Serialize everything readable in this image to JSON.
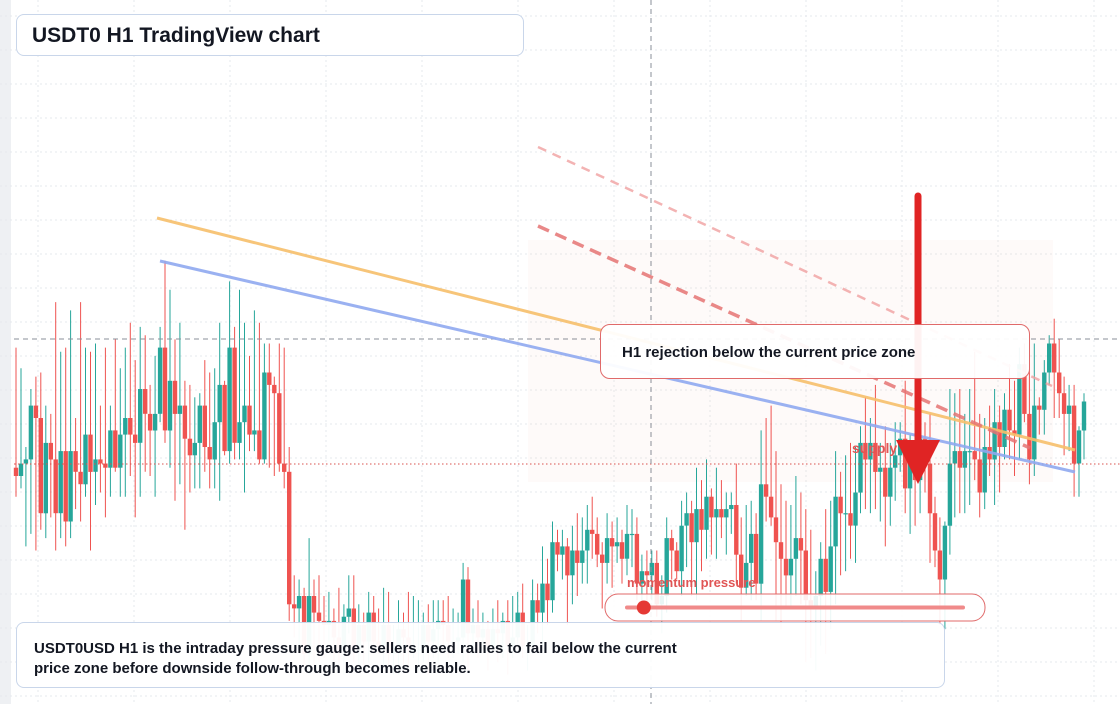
{
  "header": {
    "title": "USDT0 H1 TradingView chart"
  },
  "annotations": {
    "callout": "H1 rejection below the current price zone",
    "zone_label": "supply",
    "gauge_label": "momentum pressure",
    "note": "USDT0USD H1 is the intraday pressure gauge: sellers need rallies to fail below the current price zone before downside follow-through becomes reliable."
  },
  "gauge": {
    "pressure": 0.05
  },
  "colors": {
    "bull": "#26a69a",
    "bear": "#ef5350",
    "accent": "#e53935",
    "trend_orange": "#f6bf6a",
    "trend_blue": "#8fa9ef",
    "grid": "#e6e9ee"
  },
  "chart_data": {
    "type": "candlestick",
    "symbol": "USDT0USD",
    "timeframe": "H1",
    "title": "USDT0 H1 TradingView chart",
    "grid": true,
    "current_price_level": 0.6,
    "candles": [
      [
        0.45,
        0.43,
        0.74,
        0.38
      ],
      [
        0.43,
        0.46,
        0.69,
        0.4
      ],
      [
        0.46,
        0.47,
        0.5,
        0.26
      ],
      [
        0.47,
        0.6,
        0.64,
        0.29
      ],
      [
        0.6,
        0.57,
        0.67,
        0.25
      ],
      [
        0.57,
        0.34,
        0.68,
        0.3
      ],
      [
        0.34,
        0.51,
        0.6,
        0.28
      ],
      [
        0.51,
        0.47,
        0.58,
        0.33
      ],
      [
        0.47,
        0.34,
        0.85,
        0.25
      ],
      [
        0.34,
        0.49,
        0.73,
        0.28
      ],
      [
        0.49,
        0.32,
        0.74,
        0.26
      ],
      [
        0.32,
        0.49,
        0.83,
        0.28
      ],
      [
        0.49,
        0.44,
        0.57,
        0.35
      ],
      [
        0.44,
        0.41,
        0.85,
        0.32
      ],
      [
        0.41,
        0.53,
        0.74,
        0.38
      ],
      [
        0.53,
        0.44,
        0.73,
        0.25
      ],
      [
        0.44,
        0.47,
        0.75,
        0.36
      ],
      [
        0.47,
        0.46,
        0.6,
        0.39
      ],
      [
        0.46,
        0.45,
        0.74,
        0.33
      ],
      [
        0.45,
        0.54,
        0.6,
        0.38
      ],
      [
        0.54,
        0.45,
        0.76,
        0.44
      ],
      [
        0.45,
        0.53,
        0.69,
        0.38
      ],
      [
        0.53,
        0.57,
        0.74,
        0.38
      ],
      [
        0.57,
        0.53,
        0.8,
        0.43
      ],
      [
        0.53,
        0.51,
        0.71,
        0.33
      ],
      [
        0.51,
        0.64,
        0.79,
        0.38
      ],
      [
        0.64,
        0.58,
        0.77,
        0.44
      ],
      [
        0.58,
        0.54,
        0.65,
        0.43
      ],
      [
        0.54,
        0.58,
        0.72,
        0.38
      ],
      [
        0.58,
        0.74,
        0.79,
        0.56
      ],
      [
        0.74,
        0.54,
        0.95,
        0.51
      ],
      [
        0.54,
        0.66,
        0.88,
        0.45
      ],
      [
        0.66,
        0.58,
        0.76,
        0.37
      ],
      [
        0.58,
        0.6,
        0.8,
        0.41
      ],
      [
        0.6,
        0.52,
        0.66,
        0.3
      ],
      [
        0.52,
        0.48,
        0.65,
        0.39
      ],
      [
        0.48,
        0.51,
        0.62,
        0.4
      ],
      [
        0.51,
        0.6,
        0.63,
        0.4
      ],
      [
        0.6,
        0.5,
        0.71,
        0.44
      ],
      [
        0.5,
        0.47,
        0.68,
        0.4
      ],
      [
        0.47,
        0.56,
        0.69,
        0.4
      ],
      [
        0.56,
        0.65,
        0.8,
        0.37
      ],
      [
        0.65,
        0.49,
        0.66,
        0.48
      ],
      [
        0.49,
        0.74,
        0.9,
        0.46
      ],
      [
        0.74,
        0.51,
        0.79,
        0.47
      ],
      [
        0.51,
        0.56,
        0.88,
        0.47
      ],
      [
        0.56,
        0.6,
        0.8,
        0.39
      ],
      [
        0.6,
        0.53,
        0.72,
        0.49
      ],
      [
        0.53,
        0.54,
        0.83,
        0.49
      ],
      [
        0.54,
        0.47,
        0.8,
        0.46
      ],
      [
        0.47,
        0.68,
        0.75,
        0.46
      ],
      [
        0.68,
        0.65,
        0.75,
        0.45
      ],
      [
        0.65,
        0.63,
        0.67,
        0.43
      ],
      [
        0.63,
        0.46,
        0.75,
        0.44
      ],
      [
        0.46,
        0.44,
        0.74,
        0.4
      ],
      [
        0.44,
        0.12,
        0.5,
        0.08
      ],
      [
        0.12,
        0.11,
        0.19,
        0.04
      ],
      [
        0.11,
        0.14,
        0.18,
        0.01
      ],
      [
        0.14,
        0.0,
        0.16,
        -0.03
      ],
      [
        0.0,
        0.14,
        0.28,
        -0.05
      ],
      [
        0.14,
        0.1,
        0.18,
        -0.04
      ],
      [
        0.1,
        0.08,
        0.19,
        -0.02
      ],
      [
        0.08,
        0.07,
        0.14,
        -0.01
      ],
      [
        0.07,
        0.08,
        0.15,
        0.03
      ],
      [
        0.08,
        0.04,
        0.11,
        -0.03
      ],
      [
        0.04,
        0.01,
        0.16,
        -0.02
      ],
      [
        0.01,
        0.09,
        0.12,
        -0.05
      ],
      [
        0.09,
        0.11,
        0.19,
        0.05
      ],
      [
        0.11,
        0.01,
        0.19,
        -0.02
      ],
      [
        0.01,
        0.07,
        0.12,
        -0.04
      ],
      [
        0.07,
        0.03,
        0.1,
        -0.03
      ],
      [
        0.03,
        0.1,
        0.15,
        -0.02
      ],
      [
        0.1,
        0.03,
        0.14,
        0.0
      ],
      [
        0.03,
        0.02,
        0.11,
        0.0
      ],
      [
        0.02,
        0.07,
        0.16,
        -0.03
      ],
      [
        0.07,
        0.0,
        0.15,
        -0.03
      ],
      [
        0.0,
        0.02,
        0.07,
        -0.05
      ],
      [
        0.02,
        0.06,
        0.13,
        -0.05
      ],
      [
        0.06,
        0.04,
        0.1,
        -0.04
      ],
      [
        0.04,
        0.01,
        0.15,
        -0.03
      ],
      [
        0.01,
        0.01,
        0.14,
        -0.01
      ],
      [
        0.01,
        0.01,
        0.13,
        -0.04
      ],
      [
        0.01,
        0.07,
        0.1,
        -0.02
      ],
      [
        0.07,
        0.03,
        0.12,
        -0.05
      ],
      [
        0.03,
        0.06,
        0.13,
        -0.01
      ],
      [
        0.06,
        0.08,
        0.13,
        -0.02
      ],
      [
        0.08,
        0.07,
        0.13,
        0.02
      ],
      [
        0.07,
        0.03,
        0.14,
        -0.01
      ],
      [
        0.03,
        0.03,
        0.11,
        -0.01
      ],
      [
        0.03,
        0.04,
        0.1,
        0.0
      ],
      [
        0.04,
        0.18,
        0.22,
        -0.02
      ],
      [
        0.18,
        0.05,
        0.21,
        -0.04
      ],
      [
        0.05,
        0.07,
        0.11,
        0.0
      ],
      [
        0.07,
        0.04,
        0.13,
        -0.01
      ],
      [
        0.04,
        0.06,
        0.1,
        0.02
      ],
      [
        0.06,
        0.02,
        0.08,
        -0.04
      ],
      [
        0.02,
        0.06,
        0.11,
        0.02
      ],
      [
        0.06,
        0.05,
        0.13,
        -0.02
      ],
      [
        0.05,
        0.08,
        0.1,
        -0.01
      ],
      [
        0.08,
        0.02,
        0.13,
        -0.05
      ],
      [
        0.02,
        0.04,
        0.14,
        -0.01
      ],
      [
        0.04,
        0.1,
        0.15,
        0.02
      ],
      [
        0.1,
        0.02,
        0.17,
        -0.01
      ],
      [
        0.02,
        0.02,
        0.07,
        -0.04
      ],
      [
        0.02,
        0.13,
        0.18,
        0.0
      ],
      [
        0.13,
        0.1,
        0.17,
        0.05
      ],
      [
        0.1,
        0.17,
        0.26,
        0.02
      ],
      [
        0.17,
        0.13,
        0.23,
        0.07
      ],
      [
        0.13,
        0.27,
        0.32,
        0.1
      ],
      [
        0.27,
        0.24,
        0.3,
        0.2
      ],
      [
        0.24,
        0.26,
        0.3,
        0.18
      ],
      [
        0.26,
        0.19,
        0.28,
        0.07
      ],
      [
        0.19,
        0.25,
        0.31,
        0.12
      ],
      [
        0.25,
        0.22,
        0.34,
        0.14
      ],
      [
        0.22,
        0.25,
        0.33,
        0.17
      ],
      [
        0.25,
        0.3,
        0.36,
        0.17
      ],
      [
        0.3,
        0.29,
        0.38,
        0.23
      ],
      [
        0.29,
        0.24,
        0.33,
        0.21
      ],
      [
        0.24,
        0.22,
        0.27,
        0.11
      ],
      [
        0.22,
        0.28,
        0.34,
        0.17
      ],
      [
        0.28,
        0.26,
        0.32,
        0.16
      ],
      [
        0.26,
        0.27,
        0.33,
        0.22
      ],
      [
        0.27,
        0.23,
        0.3,
        0.17
      ],
      [
        0.23,
        0.29,
        0.36,
        0.19
      ],
      [
        0.29,
        0.29,
        0.35,
        0.21
      ],
      [
        0.29,
        0.17,
        0.33,
        0.13
      ],
      [
        0.17,
        0.2,
        0.24,
        0.1
      ],
      [
        0.2,
        0.19,
        0.25,
        0.1
      ],
      [
        0.19,
        0.22,
        0.25,
        0.13
      ],
      [
        0.22,
        0.12,
        0.25,
        0.09
      ],
      [
        0.12,
        0.14,
        0.19,
        0.05
      ],
      [
        0.14,
        0.28,
        0.33,
        0.1
      ],
      [
        0.28,
        0.25,
        0.3,
        0.18
      ],
      [
        0.25,
        0.2,
        0.27,
        0.18
      ],
      [
        0.2,
        0.31,
        0.37,
        0.14
      ],
      [
        0.31,
        0.34,
        0.39,
        0.21
      ],
      [
        0.34,
        0.27,
        0.37,
        0.14
      ],
      [
        0.27,
        0.35,
        0.45,
        0.13
      ],
      [
        0.35,
        0.3,
        0.42,
        0.2
      ],
      [
        0.3,
        0.38,
        0.47,
        0.23
      ],
      [
        0.38,
        0.33,
        0.4,
        0.24
      ],
      [
        0.33,
        0.35,
        0.45,
        0.23
      ],
      [
        0.35,
        0.33,
        0.42,
        0.28
      ],
      [
        0.33,
        0.35,
        0.39,
        0.24
      ],
      [
        0.35,
        0.36,
        0.39,
        0.29
      ],
      [
        0.36,
        0.24,
        0.46,
        0.17
      ],
      [
        0.24,
        0.16,
        0.33,
        0.08
      ],
      [
        0.16,
        0.22,
        0.36,
        0.14
      ],
      [
        0.22,
        0.29,
        0.37,
        0.13
      ],
      [
        0.29,
        0.17,
        0.34,
        0.13
      ],
      [
        0.17,
        0.41,
        0.54,
        0.08
      ],
      [
        0.41,
        0.38,
        0.57,
        0.32
      ],
      [
        0.38,
        0.33,
        0.6,
        0.31
      ],
      [
        0.33,
        0.27,
        0.49,
        0.08
      ],
      [
        0.27,
        0.23,
        0.41,
        0.06
      ],
      [
        0.23,
        0.19,
        0.37,
        0.11
      ],
      [
        0.19,
        0.23,
        0.36,
        0.11
      ],
      [
        0.23,
        0.28,
        0.43,
        0.14
      ],
      [
        0.28,
        0.25,
        0.39,
        0.12
      ],
      [
        0.25,
        0.13,
        0.35,
        -0.02
      ],
      [
        0.13,
        0.11,
        0.3,
        -0.01
      ],
      [
        0.11,
        0.14,
        0.2,
        -0.04
      ],
      [
        0.14,
        0.23,
        0.27,
        0.02
      ],
      [
        0.23,
        0.15,
        0.35,
        0.0
      ],
      [
        0.15,
        0.26,
        0.37,
        0.06
      ],
      [
        0.26,
        0.38,
        0.49,
        0.12
      ],
      [
        0.38,
        0.34,
        0.44,
        0.19
      ],
      [
        0.34,
        0.34,
        0.48,
        0.2
      ],
      [
        0.34,
        0.31,
        0.51,
        0.23
      ],
      [
        0.31,
        0.39,
        0.5,
        0.22
      ],
      [
        0.39,
        0.51,
        0.55,
        0.34
      ],
      [
        0.51,
        0.47,
        0.62,
        0.35
      ],
      [
        0.47,
        0.51,
        0.57,
        0.34
      ],
      [
        0.51,
        0.44,
        0.65,
        0.35
      ],
      [
        0.44,
        0.45,
        0.51,
        0.32
      ],
      [
        0.45,
        0.38,
        0.55,
        0.26
      ],
      [
        0.38,
        0.45,
        0.51,
        0.31
      ],
      [
        0.45,
        0.48,
        0.56,
        0.37
      ],
      [
        0.48,
        0.52,
        0.56,
        0.44
      ],
      [
        0.52,
        0.4,
        0.66,
        0.34
      ],
      [
        0.4,
        0.47,
        0.53,
        0.29
      ],
      [
        0.47,
        0.42,
        0.51,
        0.31
      ],
      [
        0.42,
        0.52,
        0.67,
        0.34
      ],
      [
        0.52,
        0.46,
        0.56,
        0.39
      ],
      [
        0.46,
        0.34,
        0.58,
        0.22
      ],
      [
        0.34,
        0.25,
        0.38,
        0.21
      ],
      [
        0.25,
        0.18,
        0.33,
        0.07
      ],
      [
        0.18,
        0.31,
        0.32,
        0.06
      ],
      [
        0.31,
        0.46,
        0.64,
        0.24
      ],
      [
        0.46,
        0.49,
        0.63,
        0.33
      ],
      [
        0.49,
        0.45,
        0.64,
        0.34
      ],
      [
        0.45,
        0.49,
        0.58,
        0.34
      ],
      [
        0.49,
        0.49,
        0.64,
        0.36
      ],
      [
        0.49,
        0.47,
        0.73,
        0.42
      ],
      [
        0.47,
        0.39,
        0.58,
        0.33
      ],
      [
        0.39,
        0.5,
        0.57,
        0.35
      ],
      [
        0.5,
        0.47,
        0.6,
        0.43
      ],
      [
        0.47,
        0.56,
        0.64,
        0.36
      ],
      [
        0.56,
        0.5,
        0.6,
        0.39
      ],
      [
        0.5,
        0.59,
        0.63,
        0.47
      ],
      [
        0.59,
        0.54,
        0.7,
        0.47
      ],
      [
        0.54,
        0.53,
        0.66,
        0.43
      ],
      [
        0.53,
        0.7,
        0.74,
        0.47
      ],
      [
        0.7,
        0.58,
        0.75,
        0.56
      ],
      [
        0.58,
        0.47,
        0.71,
        0.41
      ],
      [
        0.47,
        0.6,
        0.75,
        0.43
      ],
      [
        0.6,
        0.59,
        0.62,
        0.53
      ],
      [
        0.59,
        0.68,
        0.71,
        0.53
      ],
      [
        0.68,
        0.75,
        0.77,
        0.65
      ],
      [
        0.75,
        0.68,
        0.81,
        0.57
      ],
      [
        0.68,
        0.63,
        0.76,
        0.57
      ],
      [
        0.63,
        0.58,
        0.67,
        0.48
      ],
      [
        0.58,
        0.6,
        0.65,
        0.49
      ],
      [
        0.6,
        0.46,
        0.65,
        0.38
      ],
      [
        0.46,
        0.54,
        0.55,
        0.38
      ],
      [
        0.54,
        0.61,
        0.63,
        0.47
      ]
    ]
  }
}
